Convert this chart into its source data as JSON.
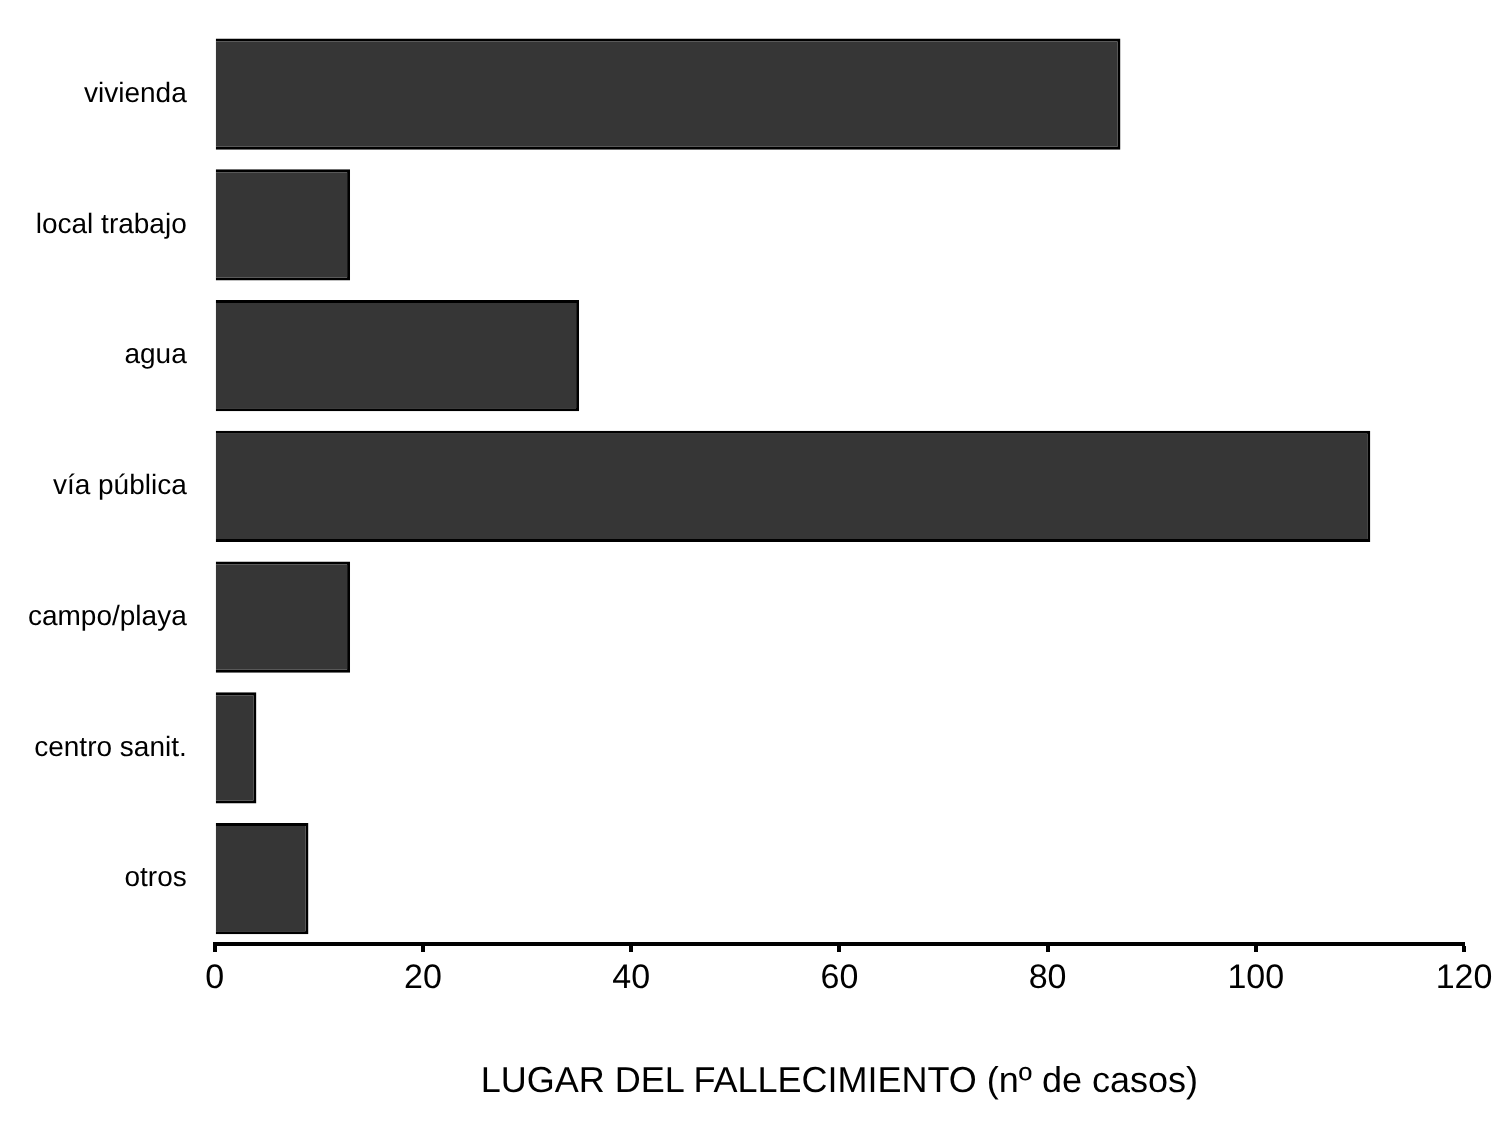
{
  "chart_data": {
    "type": "bar",
    "orientation": "horizontal",
    "xlabel": "LUGAR DEL FALLECIMIENTO (nº de casos)",
    "categories": [
      "vivienda",
      "local trabajo",
      "agua",
      "vía pública",
      "campo/playa",
      "centro sanit.",
      "otros"
    ],
    "values": [
      87,
      13,
      35,
      111,
      13,
      4,
      9
    ],
    "color": "#363636",
    "xlim": [
      0,
      120
    ],
    "xticks": [
      0,
      20,
      40,
      60,
      80,
      100,
      120
    ],
    "grid": false,
    "legend": false
  }
}
